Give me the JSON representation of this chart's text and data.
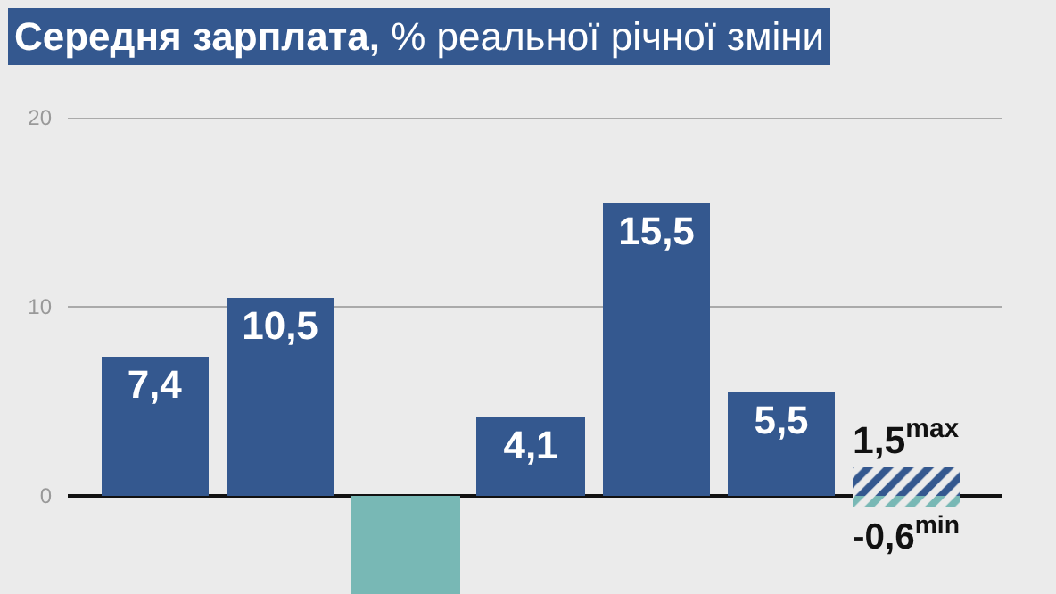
{
  "chart_data": {
    "type": "bar",
    "title": "Середня зарплата, % реальної річної зміни",
    "categories": [
      null,
      null,
      null,
      null,
      null,
      null,
      null
    ],
    "stacked": true,
    "series": [
      {
        "colors": [
          "#34588f",
          "#34588f",
          "#78b8b5",
          "#34588f",
          "#34588f",
          "#34588f",
          "#34588f"
        ],
        "values": [
          7.4,
          10.5,
          -5.2,
          4.1,
          15.5,
          5.5,
          null
        ],
        "value_labels": [
          "7,4",
          "10,5",
          null,
          "4,1",
          "15,5",
          "5,5",
          null
        ]
      },
      {
        "color": "#34588f",
        "values": [
          null,
          null,
          null,
          null,
          null,
          null,
          1.5
        ],
        "value_labels": [
          null,
          null,
          null,
          null,
          null,
          null,
          "1,5$^{max}$"
        ]
      },
      {
        "color": "#78b8b5",
        "values": [
          null,
          null,
          null,
          null,
          null,
          null,
          -0.6
        ],
        "value_labels": [
          null,
          null,
          null,
          null,
          null,
          null,
          "-0,6$^{min}$"
        ]
      }
    ],
    "ylim": [
      -5.2,
      20
    ],
    "yticks": [
      0,
      10,
      20
    ],
    "ref_lines": [
      {
        "axis": "y",
        "value": 10,
        "color": "#aaaaaa"
      },
      {
        "axis": "y",
        "value": 20,
        "color": "#aaaaaa"
      }
    ],
    "tick_labels": "y"
  }
}
